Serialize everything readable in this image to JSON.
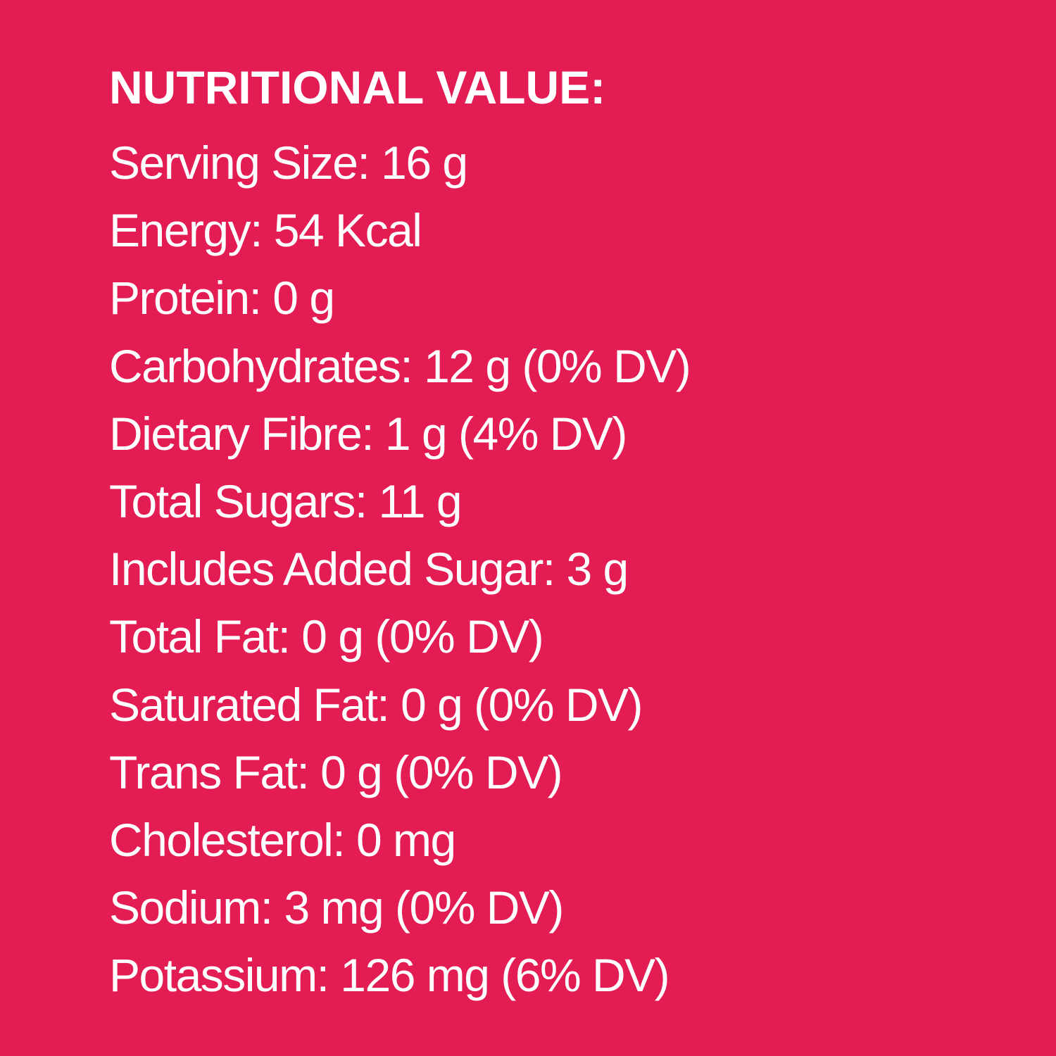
{
  "background_color": "#E31D53",
  "text_color": "#FFFFFF",
  "title": "NUTRITIONAL VALUE:",
  "items": [
    "Serving Size: 16 g",
    "Energy: 54 Kcal",
    "Protein: 0 g",
    "Carbohydrates: 12 g (0% DV)",
    "Dietary Fibre: 1 g (4% DV)",
    "Total Sugars: 11 g",
    "Includes Added Sugar: 3 g",
    "Total Fat: 0 g (0% DV)",
    "Saturated Fat: 0 g (0% DV)",
    "Trans Fat: 0 g (0% DV)",
    "Cholesterol: 0 mg",
    "Sodium: 3 mg (0% DV)",
    "Potassium: 126 mg (6% DV)"
  ]
}
